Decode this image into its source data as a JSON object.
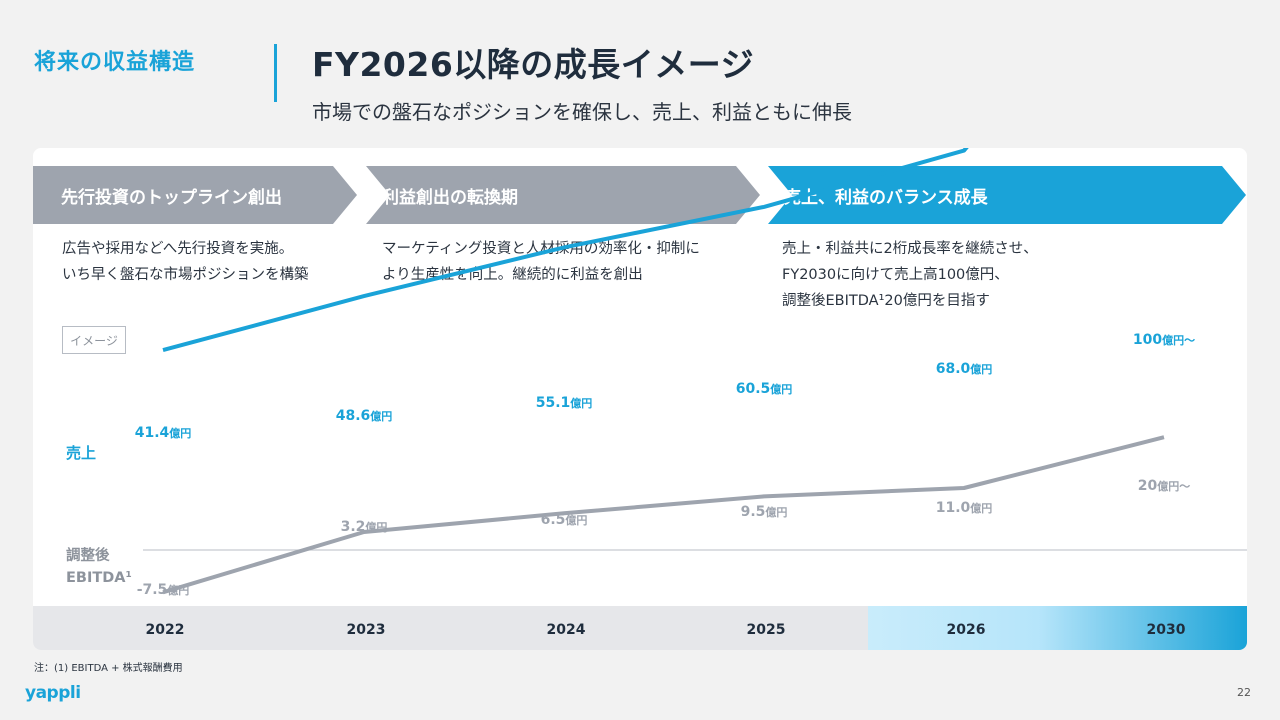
{
  "header": {
    "section": "将来の収益構造",
    "title": "FY2026以降の成長イメージ",
    "subtitle": "市場での盤石なポジションを確保し、売上、利益ともに伸長"
  },
  "phases": [
    {
      "label": "先行投資のトップライン創出",
      "description": "広告や採用などへ先行投資を実施。\nいち早く盤石な市場ポジションを構築"
    },
    {
      "label": "利益創出の転換期",
      "description": "マーケティング投資と人材採用の効率化・抑制に\nより生産性を向上。継続的に利益を創出"
    },
    {
      "label": "売上、利益のバランス成長",
      "description": "売上・利益共に2桁成長率を継続させ、\nFY2030に向けて売上高100億円、\n調整後EBITDA¹20億円を目指す"
    }
  ],
  "badge": "イメージ",
  "footnote": "注：(1) EBITDA + 株式報酬費用",
  "logo": "yappli",
  "page_number": "22",
  "colors": {
    "accent": "#1aa3d8",
    "gray": "#9ea4ae",
    "text": "#1f2d3d"
  },
  "chart_data": {
    "type": "line",
    "categories": [
      "2022",
      "2023",
      "2024",
      "2025",
      "2026",
      "2030"
    ],
    "series": [
      {
        "name": "売上",
        "values": [
          41.4,
          48.6,
          55.1,
          60.5,
          68.0,
          100
        ],
        "labels": [
          "41.4",
          "48.6",
          "55.1",
          "60.5",
          "68.0",
          "100"
        ],
        "unit": "億円",
        "last_suffix": "〜",
        "color": "#1aa3d8"
      },
      {
        "name": "調整後EBITDA¹",
        "name_lines": [
          "調整後",
          "EBITDA¹"
        ],
        "values": [
          -7.5,
          3.2,
          6.5,
          9.5,
          11.0,
          20
        ],
        "labels": [
          "-7.5",
          "3.2",
          "6.5",
          "9.5",
          "11.0",
          "20"
        ],
        "unit": "億円",
        "last_suffix": "〜",
        "color": "#9ea4ae"
      }
    ],
    "zero_line": true,
    "highlight_categories": [
      "2026",
      "2030"
    ]
  }
}
